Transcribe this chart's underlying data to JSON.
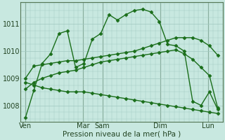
{
  "background_color": "#c8e8e0",
  "grid_color": "#a0c8c0",
  "line_color": "#1a6e1a",
  "marker": "D",
  "markersize": 2.5,
  "linewidth": 1.0,
  "xlabel": "Pression niveau de la mer( hPa )",
  "xlabel_fontsize": 7.5,
  "tick_fontsize": 7.0,
  "ylim": [
    1007.4,
    1011.8
  ],
  "yticks": [
    1008,
    1009,
    1010,
    1011
  ],
  "x_tick_positions": [
    0,
    6,
    8,
    14,
    19
  ],
  "x_tick_labels": [
    "Ven",
    "Mar",
    "Sam",
    "Dim",
    "Lun"
  ],
  "x_vlines": [
    0,
    6,
    8,
    14,
    19
  ],
  "series": [
    [
      1007.55,
      1008.55,
      1009.55,
      1009.9,
      1010.65,
      1010.75,
      1009.4,
      1009.55,
      1010.45,
      1010.65,
      1011.35,
      1011.15,
      1011.35,
      1011.5,
      1011.55,
      1011.45,
      1011.1,
      1010.25,
      1010.2,
      1010.0,
      1008.15,
      1008.0,
      1008.5,
      1007.85
    ],
    [
      1008.6,
      1008.85,
      1009.0,
      1009.1,
      1009.2,
      1009.25,
      1009.3,
      1009.4,
      1009.5,
      1009.6,
      1009.65,
      1009.7,
      1009.75,
      1009.8,
      1009.85,
      1009.9,
      1009.95,
      1010.0,
      1010.05,
      1009.9,
      1009.7,
      1009.4,
      1009.1,
      1007.9
    ],
    [
      1009.0,
      1009.45,
      1009.5,
      1009.55,
      1009.6,
      1009.65,
      1009.65,
      1009.7,
      1009.75,
      1009.8,
      1009.85,
      1009.9,
      1009.95,
      1010.0,
      1010.1,
      1010.2,
      1010.3,
      1010.4,
      1010.5,
      1010.5,
      1010.5,
      1010.4,
      1010.2,
      1009.85
    ],
    [
      1008.85,
      1008.75,
      1008.65,
      1008.6,
      1008.55,
      1008.5,
      1008.5,
      1008.5,
      1008.45,
      1008.4,
      1008.35,
      1008.3,
      1008.25,
      1008.2,
      1008.15,
      1008.1,
      1008.05,
      1008.0,
      1007.95,
      1007.9,
      1007.85,
      1007.8,
      1007.75,
      1007.7
    ]
  ]
}
